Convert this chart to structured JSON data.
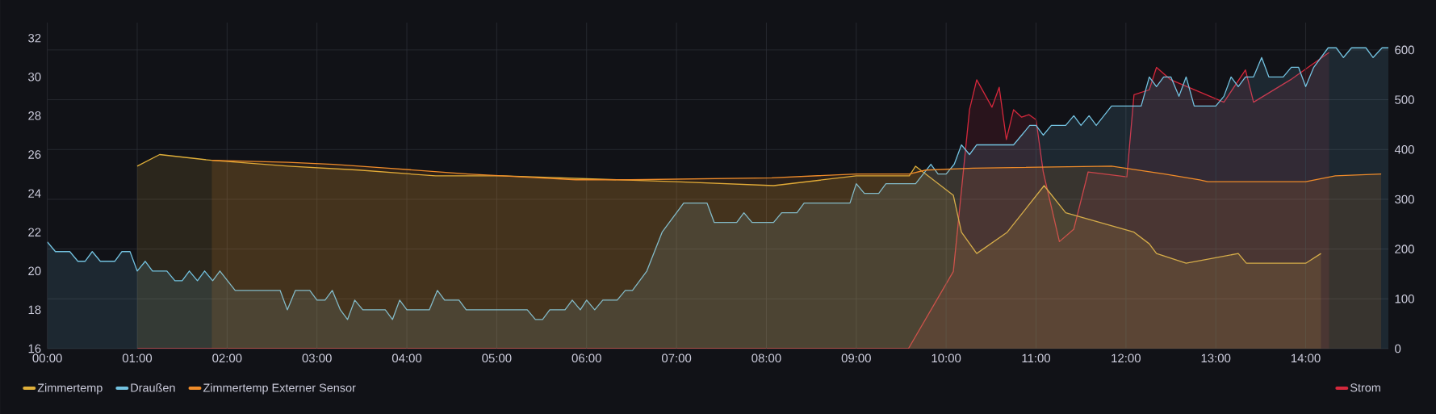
{
  "chart_data": {
    "type": "area",
    "xlim": [
      0,
      14.92
    ],
    "xticks": [
      {
        "value": 0,
        "label": "00:00"
      },
      {
        "value": 1,
        "label": "01:00"
      },
      {
        "value": 2,
        "label": "02:00"
      },
      {
        "value": 3,
        "label": "03:00"
      },
      {
        "value": 4,
        "label": "04:00"
      },
      {
        "value": 5,
        "label": "05:00"
      },
      {
        "value": 6,
        "label": "06:00"
      },
      {
        "value": 7,
        "label": "07:00"
      },
      {
        "value": 8,
        "label": "08:00"
      },
      {
        "value": 9,
        "label": "09:00"
      },
      {
        "value": 10,
        "label": "10:00"
      },
      {
        "value": 11,
        "label": "11:00"
      },
      {
        "value": 12,
        "label": "12:00"
      },
      {
        "value": 13,
        "label": "13:00"
      },
      {
        "value": 14,
        "label": "14:00"
      }
    ],
    "ylim": [
      16,
      32.8
    ],
    "yticks": [
      16,
      18,
      20,
      22,
      24,
      26,
      28,
      30,
      32
    ],
    "y2lim": [
      0,
      655
    ],
    "y2ticks": [
      0,
      100,
      200,
      300,
      400,
      500,
      600
    ],
    "grid": true,
    "legend": "bottom",
    "series": [
      {
        "name": "Zimmertemp",
        "color": "#e0b03a",
        "x": [
          1.0,
          1.25,
          1.83,
          2.68,
          3.47,
          4.32,
          5.06,
          6.99,
          8.08,
          9.0,
          9.59,
          9.66,
          10.08,
          10.17,
          10.34,
          10.68,
          11.09,
          11.33,
          12.09,
          12.26,
          12.34,
          12.67,
          13.25,
          13.34,
          14.0,
          14.17
        ],
        "values": [
          25.4,
          26.0,
          25.7,
          25.4,
          25.2,
          24.9,
          24.9,
          24.6,
          24.4,
          24.9,
          24.9,
          25.4,
          23.9,
          22.0,
          20.9,
          22.0,
          24.4,
          23.0,
          22.0,
          21.4,
          20.9,
          20.4,
          20.9,
          20.4,
          20.4,
          20.9
        ]
      },
      {
        "name": "Draußen",
        "color": "#73c2e0",
        "x": [
          0,
          0.09,
          0.25,
          0.34,
          0.42,
          0.5,
          0.59,
          0.75,
          0.83,
          0.92,
          1.0,
          1.09,
          1.17,
          1.33,
          1.42,
          1.5,
          1.58,
          1.67,
          1.75,
          1.84,
          1.92,
          2.09,
          2.59,
          2.67,
          2.76,
          2.92,
          3.0,
          3.09,
          3.17,
          3.26,
          3.34,
          3.42,
          3.51,
          3.76,
          3.84,
          3.92,
          4.0,
          4.25,
          4.34,
          4.42,
          4.58,
          4.66,
          5.34,
          5.43,
          5.51,
          5.59,
          5.76,
          5.84,
          5.93,
          6.0,
          6.09,
          6.18,
          6.34,
          6.43,
          6.51,
          6.67,
          6.84,
          7.08,
          7.34,
          7.42,
          7.67,
          7.75,
          7.84,
          8.08,
          8.17,
          8.34,
          8.42,
          8.93,
          9.0,
          9.09,
          9.25,
          9.33,
          9.66,
          9.83,
          9.91,
          10.0,
          10.09,
          10.17,
          10.26,
          10.34,
          10.75,
          10.84,
          10.93,
          11.0,
          11.08,
          11.17,
          11.33,
          11.42,
          11.5,
          11.59,
          11.67,
          11.84,
          12.17,
          12.26,
          12.34,
          12.42,
          12.5,
          12.59,
          12.67,
          12.76,
          13.0,
          13.09,
          13.17,
          13.25,
          13.33,
          13.42,
          13.51,
          13.59,
          13.75,
          13.84,
          13.92,
          14.0,
          14.09,
          14.25,
          14.34,
          14.42,
          14.51,
          14.67,
          14.75,
          14.85,
          14.92
        ],
        "values": [
          21.5,
          21,
          21,
          20.5,
          20.5,
          21,
          20.5,
          20.5,
          21,
          21,
          20,
          20.5,
          20,
          20,
          19.5,
          19.5,
          20,
          19.5,
          20,
          19.5,
          20,
          19,
          19,
          18,
          19,
          19,
          18.5,
          18.5,
          19,
          18,
          17.5,
          18.5,
          18,
          18,
          17.5,
          18.5,
          18,
          18,
          19,
          18.5,
          18.5,
          18,
          18,
          17.5,
          17.5,
          18,
          18,
          18.5,
          18,
          18.5,
          18,
          18.5,
          18.5,
          19,
          19,
          20,
          22,
          23.5,
          23.5,
          22.5,
          22.5,
          23,
          22.5,
          22.5,
          23,
          23,
          23.5,
          23.5,
          24.5,
          24,
          24,
          24.5,
          24.5,
          25.5,
          25,
          25,
          25.5,
          26.5,
          26,
          26.5,
          26.5,
          27,
          27.5,
          27.5,
          27,
          27.5,
          27.5,
          28,
          27.5,
          28,
          27.5,
          28.5,
          28.5,
          30,
          29.5,
          30,
          30,
          29,
          30,
          28.5,
          28.5,
          29,
          30,
          29.5,
          30,
          30,
          31,
          30,
          30,
          30.5,
          30.5,
          29.5,
          30.5,
          31.5,
          31.5,
          31,
          31.5,
          31.5,
          31,
          31.5,
          31.5
        ]
      },
      {
        "name": "Zimmertemp Externer Sensor",
        "color": "#f08c2a",
        "x": [
          1.83,
          2.68,
          3.18,
          3.79,
          4.68,
          5.06,
          5.88,
          6.49,
          8.06,
          9.0,
          9.59,
          9.77,
          10.3,
          11.84,
          12.43,
          12.82,
          12.91,
          13.42,
          14.0,
          14.33,
          14.84
        ],
        "values": [
          25.7,
          25.6,
          25.5,
          25.3,
          25.0,
          24.9,
          24.7,
          24.7,
          24.8,
          25.0,
          25.0,
          25.2,
          25.3,
          25.4,
          25.0,
          24.7,
          24.6,
          24.6,
          24.6,
          24.9,
          25.0
        ]
      },
      {
        "name": "Strom",
        "color": "#d4283c",
        "axis": "y2",
        "x": [
          1.0,
          9.58,
          10.08,
          10.26,
          10.34,
          10.51,
          10.59,
          10.67,
          10.75,
          10.84,
          10.92,
          11.0,
          11.08,
          11.26,
          11.42,
          11.58,
          12.01,
          12.09,
          12.26,
          12.34,
          12.5,
          13.09,
          13.33,
          13.42,
          13.83,
          14.26
        ],
        "values": [
          0,
          0,
          155,
          480,
          540,
          485,
          525,
          420,
          480,
          465,
          470,
          460,
          355,
          215,
          240,
          355,
          345,
          510,
          520,
          565,
          540,
          495,
          560,
          495,
          540,
          595
        ]
      }
    ]
  }
}
